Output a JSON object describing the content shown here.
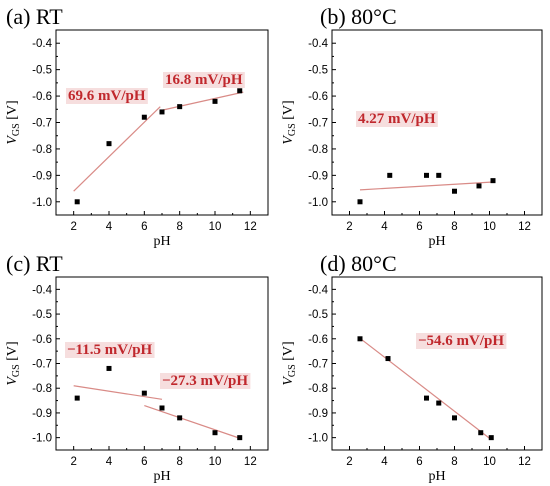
{
  "colors": {
    "marker": "#000000",
    "fit_line": "#d98b87",
    "slope_text": "#c0282d",
    "slope_bg": "#f6dede",
    "frame": "#000000"
  },
  "chart_data": [
    {
      "type": "scatter",
      "panel_label": "(a) RT",
      "xlabel": "pH",
      "ylabel_main": "V",
      "ylabel_sub": "GS",
      "ylabel_unit": "[V]",
      "xlim": [
        1,
        13
      ],
      "ylim": [
        -1.05,
        -0.35
      ],
      "xticks": [
        2,
        4,
        6,
        8,
        10,
        12
      ],
      "yticks": [
        -0.4,
        -0.5,
        -0.6,
        -0.7,
        -0.8,
        -0.9,
        -1.0
      ],
      "points": [
        [
          2.2,
          -1.0
        ],
        [
          4.0,
          -0.78
        ],
        [
          6.0,
          -0.68
        ],
        [
          7.0,
          -0.66
        ],
        [
          8.0,
          -0.64
        ],
        [
          10.0,
          -0.62
        ],
        [
          11.4,
          -0.58
        ]
      ],
      "fit_lines": [
        {
          "x": [
            2.0,
            6.9
          ],
          "y": [
            -0.96,
            -0.64
          ]
        },
        {
          "x": [
            6.9,
            11.6
          ],
          "y": [
            -0.655,
            -0.585
          ]
        }
      ],
      "annotations": [
        "69.6 mV/pH",
        "16.8 mV/pH"
      ]
    },
    {
      "type": "scatter",
      "panel_label": "(b) 80°C",
      "xlabel": "pH",
      "ylabel_main": "V",
      "ylabel_sub": "GS",
      "ylabel_unit": "[V]",
      "xlim": [
        1,
        13
      ],
      "ylim": [
        -1.05,
        -0.35
      ],
      "xticks": [
        2,
        4,
        6,
        8,
        10,
        12
      ],
      "yticks": [
        -0.4,
        -0.5,
        -0.6,
        -0.7,
        -0.8,
        -0.9,
        -1.0
      ],
      "points": [
        [
          2.6,
          -1.0
        ],
        [
          4.3,
          -0.9
        ],
        [
          6.4,
          -0.9
        ],
        [
          7.1,
          -0.9
        ],
        [
          8.0,
          -0.96
        ],
        [
          9.4,
          -0.94
        ],
        [
          10.2,
          -0.92
        ]
      ],
      "fit_lines": [
        {
          "x": [
            2.6,
            10.2
          ],
          "y": [
            -0.955,
            -0.925
          ]
        }
      ],
      "annotations": [
        "4.27 mV/pH"
      ]
    },
    {
      "type": "scatter",
      "panel_label": "(c) RT",
      "xlabel": "pH",
      "ylabel_main": "V",
      "ylabel_sub": "GS",
      "ylabel_unit": "[V]",
      "xlim": [
        1,
        13
      ],
      "ylim": [
        -1.05,
        -0.35
      ],
      "xticks": [
        2,
        4,
        6,
        8,
        10,
        12
      ],
      "yticks": [
        -0.4,
        -0.5,
        -0.6,
        -0.7,
        -0.8,
        -0.9,
        -1.0
      ],
      "points": [
        [
          2.2,
          -0.84
        ],
        [
          4.0,
          -0.72
        ],
        [
          6.0,
          -0.82
        ],
        [
          7.0,
          -0.88
        ],
        [
          8.0,
          -0.92
        ],
        [
          10.0,
          -0.98
        ],
        [
          11.4,
          -1.0
        ]
      ],
      "fit_lines": [
        {
          "x": [
            2.0,
            7.0
          ],
          "y": [
            -0.79,
            -0.845
          ]
        },
        {
          "x": [
            6.0,
            11.5
          ],
          "y": [
            -0.87,
            -1.005
          ]
        }
      ],
      "annotations": [
        "−11.5 mV/pH",
        "−27.3 mV/pH"
      ]
    },
    {
      "type": "scatter",
      "panel_label": "(d) 80°C",
      "xlabel": "pH",
      "ylabel_main": "V",
      "ylabel_sub": "GS",
      "ylabel_unit": "[V]",
      "xlim": [
        1,
        13
      ],
      "ylim": [
        -1.05,
        -0.35
      ],
      "xticks": [
        2,
        4,
        6,
        8,
        10,
        12
      ],
      "yticks": [
        -0.4,
        -0.5,
        -0.6,
        -0.7,
        -0.8,
        -0.9,
        -1.0
      ],
      "points": [
        [
          2.6,
          -0.6
        ],
        [
          4.2,
          -0.68
        ],
        [
          6.4,
          -0.84
        ],
        [
          7.1,
          -0.86
        ],
        [
          8.0,
          -0.92
        ],
        [
          9.5,
          -0.98
        ],
        [
          10.1,
          -1.0
        ]
      ],
      "fit_lines": [
        {
          "x": [
            2.6,
            10.1
          ],
          "y": [
            -0.598,
            -1.008
          ]
        }
      ],
      "annotations": [
        "−54.6 mV/pH"
      ]
    }
  ]
}
